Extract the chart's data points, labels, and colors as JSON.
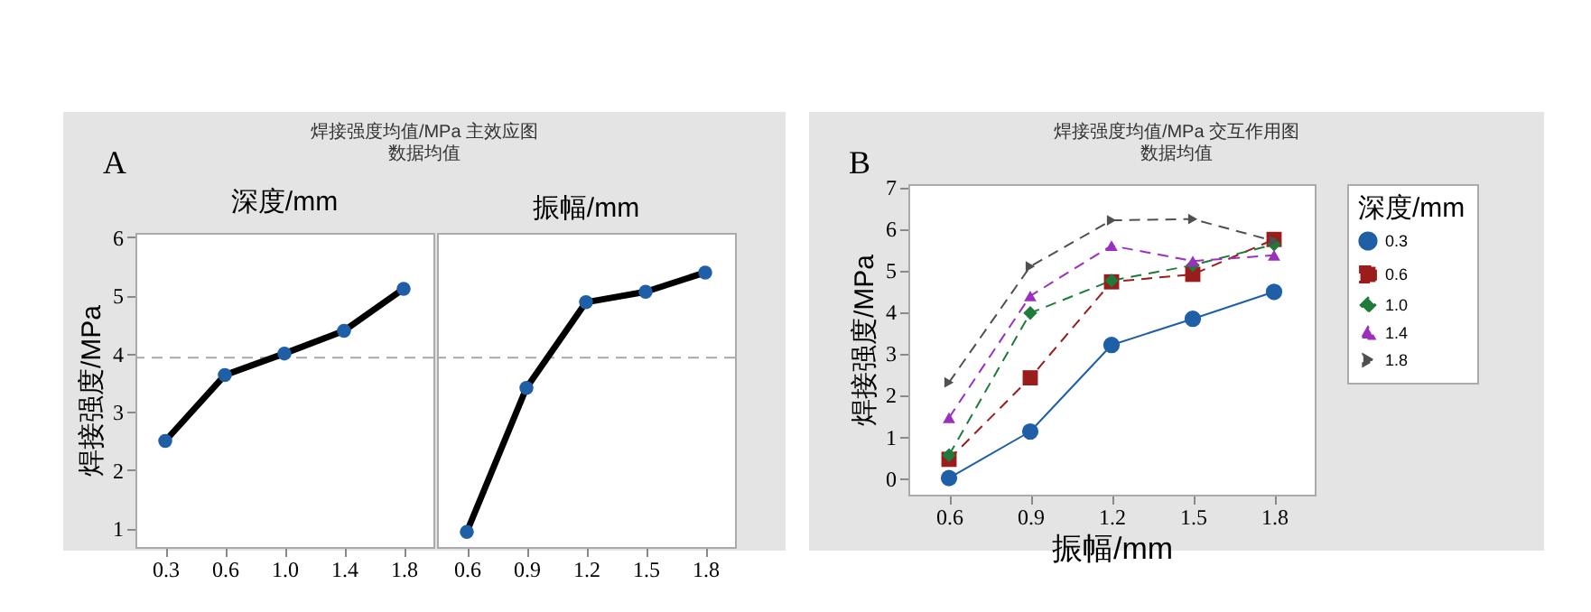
{
  "chart_data": [
    {
      "type": "line",
      "title": "焊接强度均值/MPa 主效应图",
      "subtitle": "数据均值",
      "xlabel": "深度/mm",
      "ylabel": "焊接强度/MPa",
      "annotations": [
        "A"
      ],
      "categories": [
        "0.3",
        "0.6",
        "1.0",
        "1.4",
        "1.8"
      ],
      "series": [
        {
          "color": "#1f5fa6",
          "values": [
            2.5,
            3.63,
            4.0,
            4.39,
            5.11
          ]
        }
      ],
      "ylim": [
        0.68,
        6.07
      ],
      "yticks": [
        1,
        2,
        3,
        4,
        5,
        6
      ],
      "marker": "circle",
      "line_style": "solid",
      "ref_lines": [
        {
          "axis": "y",
          "value": 3.93,
          "color": "#a8a8a8",
          "line_style": "dashed"
        }
      ]
    },
    {
      "type": "line",
      "xlabel": "振幅/mm",
      "categories": [
        "0.6",
        "0.9",
        "1.2",
        "1.5",
        "1.8"
      ],
      "series": [
        {
          "color": "#1f5fa6",
          "values": [
            0.94,
            3.41,
            4.88,
            5.06,
            5.39
          ]
        }
      ],
      "ylim": [
        0.68,
        6.07
      ],
      "tick_labels": "x",
      "marker": "circle",
      "line_style": "solid",
      "ref_lines": [
        {
          "axis": "y",
          "value": 3.93,
          "color": "#a8a8a8",
          "line_style": "dashed"
        }
      ]
    },
    {
      "type": "line",
      "title": "焊接强度均值/MPa 交互作用图",
      "subtitle": "数据均值",
      "xlabel": "振幅/mm",
      "ylabel": "焊接强度/MPa",
      "legend_title": "深度/mm",
      "annotations": [
        "B"
      ],
      "categories": [
        "0.6",
        "0.9",
        "1.2",
        "1.5",
        "1.8"
      ],
      "series": [
        {
          "name": "0.3",
          "color": "#1f5fa6",
          "marker": "circle",
          "line_style": "solid",
          "values": [
            0.0,
            1.12,
            3.2,
            3.83,
            4.48
          ]
        },
        {
          "name": "0.6",
          "color": "#9b1c1c",
          "marker": "square",
          "line_style": "dashed",
          "values": [
            0.45,
            2.41,
            4.72,
            4.9,
            5.74
          ]
        },
        {
          "name": "1.0",
          "color": "#1e7b3a",
          "marker": "diamond",
          "line_style": "dashed",
          "values": [
            0.55,
            3.97,
            4.75,
            5.12,
            5.62
          ]
        },
        {
          "name": "1.4",
          "color": "#9b30c0",
          "marker": "triangle",
          "line_style": "dashed",
          "values": [
            1.45,
            4.38,
            5.59,
            5.22,
            5.36
          ]
        },
        {
          "name": "1.8",
          "color": "#505050",
          "marker": "triangle-right",
          "line_style": "dashed",
          "values": [
            2.3,
            5.09,
            6.2,
            6.23,
            5.7
          ]
        }
      ],
      "ylim": [
        -0.4,
        7.07
      ],
      "yticks": [
        0,
        1,
        2,
        3,
        4,
        5,
        6,
        7
      ],
      "legend": "right"
    }
  ]
}
